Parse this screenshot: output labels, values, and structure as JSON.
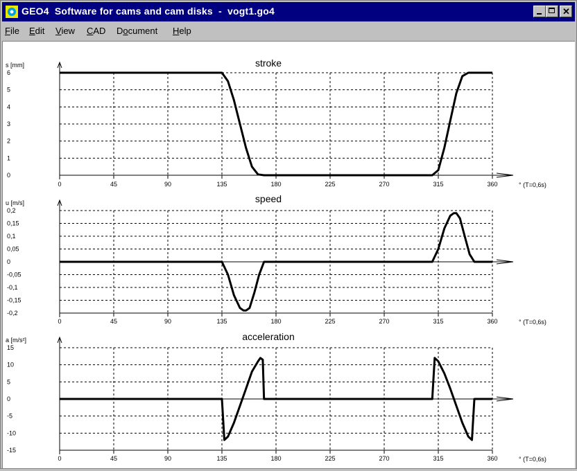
{
  "window": {
    "title": "GEO4  Software for cams and cam disks  -  vogt1.go4",
    "controls": [
      "minimize",
      "maximize",
      "close"
    ]
  },
  "menu": {
    "items": [
      {
        "label": "File",
        "mnemonic": "F",
        "rest": "ile"
      },
      {
        "label": "Edit",
        "mnemonic": "E",
        "rest": "dit"
      },
      {
        "label": "View",
        "mnemonic": "V",
        "rest": "iew"
      },
      {
        "label": "CAD",
        "mnemonic": "C",
        "rest": "AD"
      },
      {
        "label": "Document",
        "mnemonic": "o",
        "pre": "D",
        "rest": "cument"
      },
      {
        "label": "Help",
        "mnemonic": "H",
        "rest": "elp"
      }
    ]
  },
  "x_unit_label": "° (T=0,6s)",
  "chart_data": [
    {
      "type": "line",
      "title": "stroke",
      "ylabel": "s [mm]",
      "xlim": [
        0,
        360
      ],
      "ylim": [
        0,
        6
      ],
      "xticks": [
        0,
        45,
        90,
        135,
        180,
        225,
        270,
        315,
        360
      ],
      "yticks": [
        0,
        1,
        2,
        3,
        4,
        5,
        6
      ],
      "ytick_labels": [
        "0",
        "1",
        "2",
        "3",
        "4",
        "5",
        "6"
      ],
      "grid": true,
      "x": [
        0,
        135,
        140,
        145,
        150,
        155,
        160,
        165,
        170,
        310,
        315,
        320,
        325,
        330,
        335,
        340,
        360
      ],
      "y": [
        6,
        6,
        5.5,
        4.4,
        3,
        1.6,
        0.5,
        0.05,
        0,
        0,
        0.3,
        1.6,
        3.2,
        4.8,
        5.8,
        6,
        6
      ]
    },
    {
      "type": "line",
      "title": "speed",
      "ylabel": "u [m/s]",
      "xlim": [
        0,
        360
      ],
      "ylim": [
        -0.2,
        0.2
      ],
      "xticks": [
        0,
        45,
        90,
        135,
        180,
        225,
        270,
        315,
        360
      ],
      "yticks": [
        0.2,
        0.15,
        0.1,
        0.05,
        0,
        -0.05,
        -0.1,
        -0.15,
        -0.2
      ],
      "ytick_labels": [
        "0,2",
        "0,15",
        "0,1",
        "0,05",
        "0",
        "-0,05",
        "-0,1",
        "-0,15",
        "-0,2"
      ],
      "grid": true,
      "x": [
        0,
        135,
        140,
        145,
        150,
        153,
        155,
        158,
        162,
        166,
        170,
        310,
        315,
        320,
        325,
        328,
        330,
        333,
        337,
        341,
        345,
        360
      ],
      "y": [
        0,
        0,
        -0.05,
        -0.13,
        -0.18,
        -0.19,
        -0.19,
        -0.18,
        -0.12,
        -0.05,
        0,
        0,
        0.05,
        0.13,
        0.18,
        0.19,
        0.19,
        0.17,
        0.1,
        0.03,
        0,
        0
      ]
    },
    {
      "type": "line",
      "title": "acceleration",
      "ylabel": "a [m/s²]",
      "xlim": [
        0,
        360
      ],
      "ylim": [
        -15,
        15
      ],
      "xticks": [
        0,
        45,
        90,
        135,
        180,
        225,
        270,
        315,
        360
      ],
      "yticks": [
        15,
        10,
        5,
        0,
        -5,
        -10,
        -15
      ],
      "ytick_labels": [
        "15",
        "10",
        "5",
        "0",
        "-5",
        "-10",
        "-15"
      ],
      "grid": true,
      "x": [
        0,
        135,
        137,
        140,
        145,
        150,
        155,
        160,
        165,
        167,
        169,
        170,
        310,
        312,
        315,
        320,
        325,
        330,
        335,
        340,
        343,
        345,
        360
      ],
      "y": [
        0,
        0,
        -12,
        -11,
        -7,
        -2,
        3,
        8,
        11,
        12,
        11.5,
        0,
        0,
        12,
        11,
        7.5,
        3,
        -2,
        -7,
        -11,
        -12,
        0,
        0
      ]
    }
  ]
}
